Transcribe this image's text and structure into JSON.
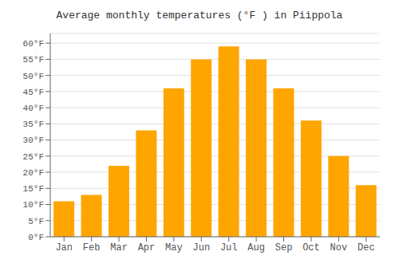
{
  "chart_data": {
    "type": "bar",
    "title": "Average monthly temperatures (°F ) in Piippola",
    "categories": [
      "Jan",
      "Feb",
      "Mar",
      "Apr",
      "May",
      "Jun",
      "Jul",
      "Aug",
      "Sep",
      "Oct",
      "Nov",
      "Dec"
    ],
    "values": [
      11,
      13,
      22,
      33,
      46,
      55,
      59,
      55,
      46,
      36,
      25,
      16
    ],
    "color": "#FFA500",
    "ylim": [
      0,
      63
    ],
    "yticks": [
      {
        "value": 0,
        "label": "0°F"
      },
      {
        "value": 5,
        "label": "5°F"
      },
      {
        "value": 10,
        "label": "10°F"
      },
      {
        "value": 15,
        "label": "15°F"
      },
      {
        "value": 20,
        "label": "20°F"
      },
      {
        "value": 25,
        "label": "25°F"
      },
      {
        "value": 30,
        "label": "30°F"
      },
      {
        "value": 35,
        "label": "35°F"
      },
      {
        "value": 40,
        "label": "40°F"
      },
      {
        "value": 45,
        "label": "45°F"
      },
      {
        "value": 50,
        "label": "50°F"
      },
      {
        "value": 55,
        "label": "55°F"
      },
      {
        "value": 60,
        "label": "60°F"
      }
    ],
    "grid": true
  }
}
